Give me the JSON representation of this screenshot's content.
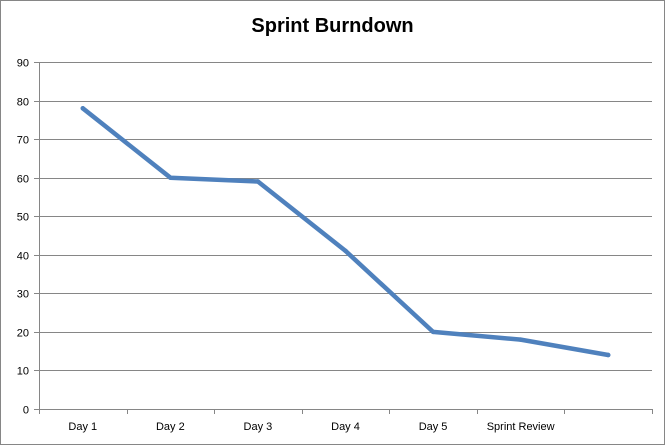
{
  "chart_data": {
    "type": "line",
    "title": "Sprint Burndown",
    "xlabel": "",
    "ylabel": "",
    "categories": [
      "Day 1",
      "Day 2",
      "Day 3",
      "Day 4",
      "Day 5",
      "Sprint Review",
      ""
    ],
    "series": [
      {
        "values": [
          78,
          60,
          59,
          41,
          20,
          18,
          14
        ],
        "color": "#4F81BD"
      }
    ],
    "ylim": [
      0,
      90
    ],
    "yticks": [
      0,
      10,
      20,
      30,
      40,
      50,
      60,
      70,
      80,
      90
    ],
    "grid": true,
    "legend": "none"
  }
}
